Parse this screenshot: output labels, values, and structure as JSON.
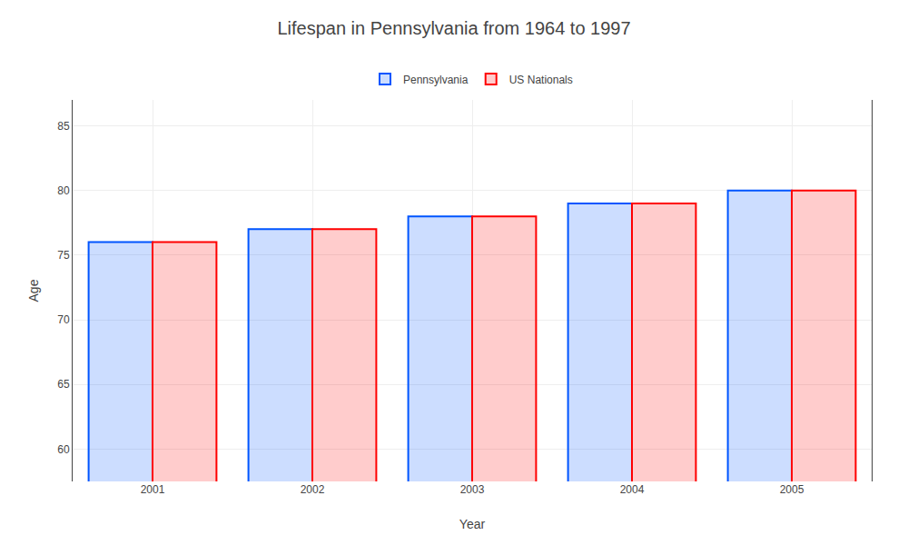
{
  "chart_data": {
    "type": "bar",
    "title": "Lifespan in Pennsylvania from 1964 to 1997",
    "xlabel": "Year",
    "ylabel": "Age",
    "categories": [
      "2001",
      "2002",
      "2003",
      "2004",
      "2005"
    ],
    "series": [
      {
        "name": "Pennsylvania",
        "color": "#0055ff",
        "values": [
          76,
          77,
          78,
          79,
          80
        ]
      },
      {
        "name": "US Nationals",
        "color": "#ff0000",
        "values": [
          76,
          77,
          78,
          79,
          80
        ]
      }
    ],
    "ylim": [
      57.5,
      87
    ],
    "yticks": [
      60,
      65,
      70,
      75,
      80,
      85
    ],
    "grid": true,
    "legend": "top"
  }
}
